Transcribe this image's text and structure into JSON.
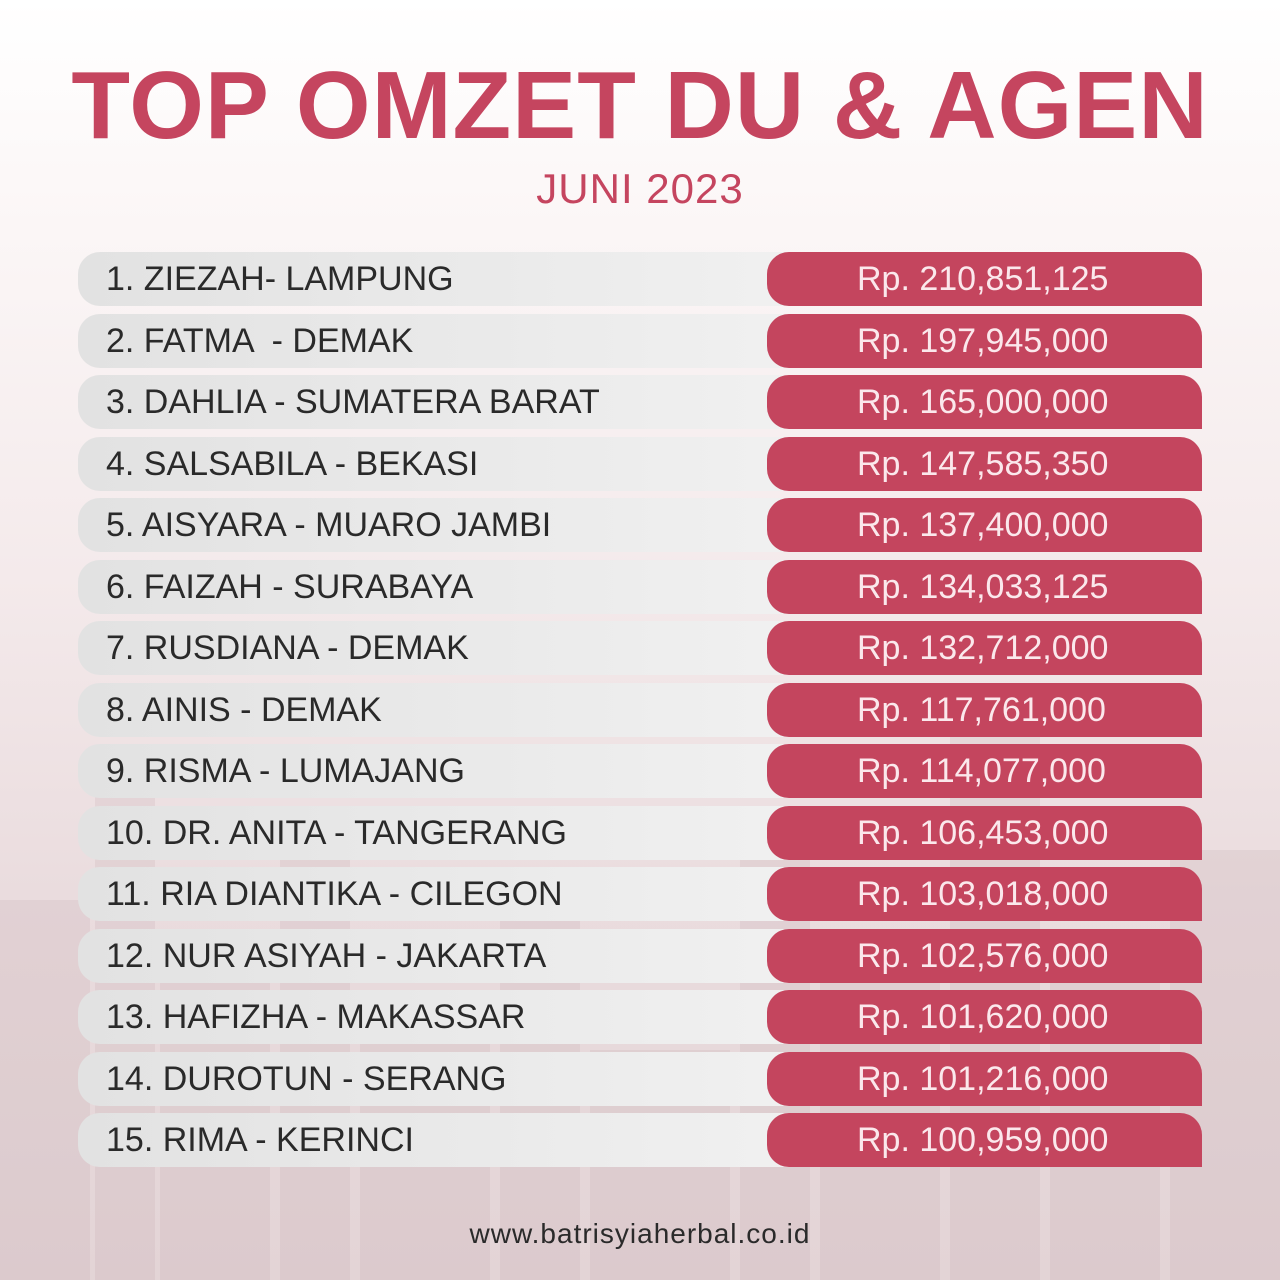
{
  "header": {
    "title": "TOP OMZET DU & AGEN",
    "subtitle": "JUNI 2023"
  },
  "ranking": [
    {
      "name": "1. ZIEZAH- LAMPUNG",
      "amount": "Rp. 210,851,125"
    },
    {
      "name": "2. FATMA  - DEMAK",
      "amount": "Rp. 197,945,000"
    },
    {
      "name": "3. DAHLIA - SUMATERA BARAT",
      "amount": "Rp. 165,000,000"
    },
    {
      "name": "4. SALSABILA - BEKASI",
      "amount": "Rp. 147,585,350"
    },
    {
      "name": "5. AISYARA - MUARO JAMBI",
      "amount": "Rp. 137,400,000"
    },
    {
      "name": "6. FAIZAH - SURABAYA",
      "amount": "Rp. 134,033,125"
    },
    {
      "name": "7. RUSDIANA - DEMAK",
      "amount": "Rp. 132,712,000"
    },
    {
      "name": "8. AINIS - DEMAK",
      "amount": "Rp. 117,761,000"
    },
    {
      "name": "9. RISMA - LUMAJANG",
      "amount": "Rp. 114,077,000"
    },
    {
      "name": "10. DR. ANITA - TANGERANG",
      "amount": "Rp. 106,453,000"
    },
    {
      "name": "11. RIA DIANTIKA - CILEGON",
      "amount": "Rp. 103,018,000"
    },
    {
      "name": "12. NUR ASIYAH - JAKARTA",
      "amount": "Rp. 102,576,000"
    },
    {
      "name": "13. HAFIZHA - MAKASSAR",
      "amount": "Rp. 101,620,000"
    },
    {
      "name": "14. DUROTUN - SERANG",
      "amount": "Rp. 101,216,000"
    },
    {
      "name": "15. RIMA - KERINCI",
      "amount": "Rp. 100,959,000"
    }
  ],
  "footer": {
    "website": "www.batrisyiaherbal.co.id"
  },
  "colors": {
    "accent": "#c4455e",
    "name_bar": "#e6e6e6",
    "text_dark": "#2a2a2a"
  }
}
